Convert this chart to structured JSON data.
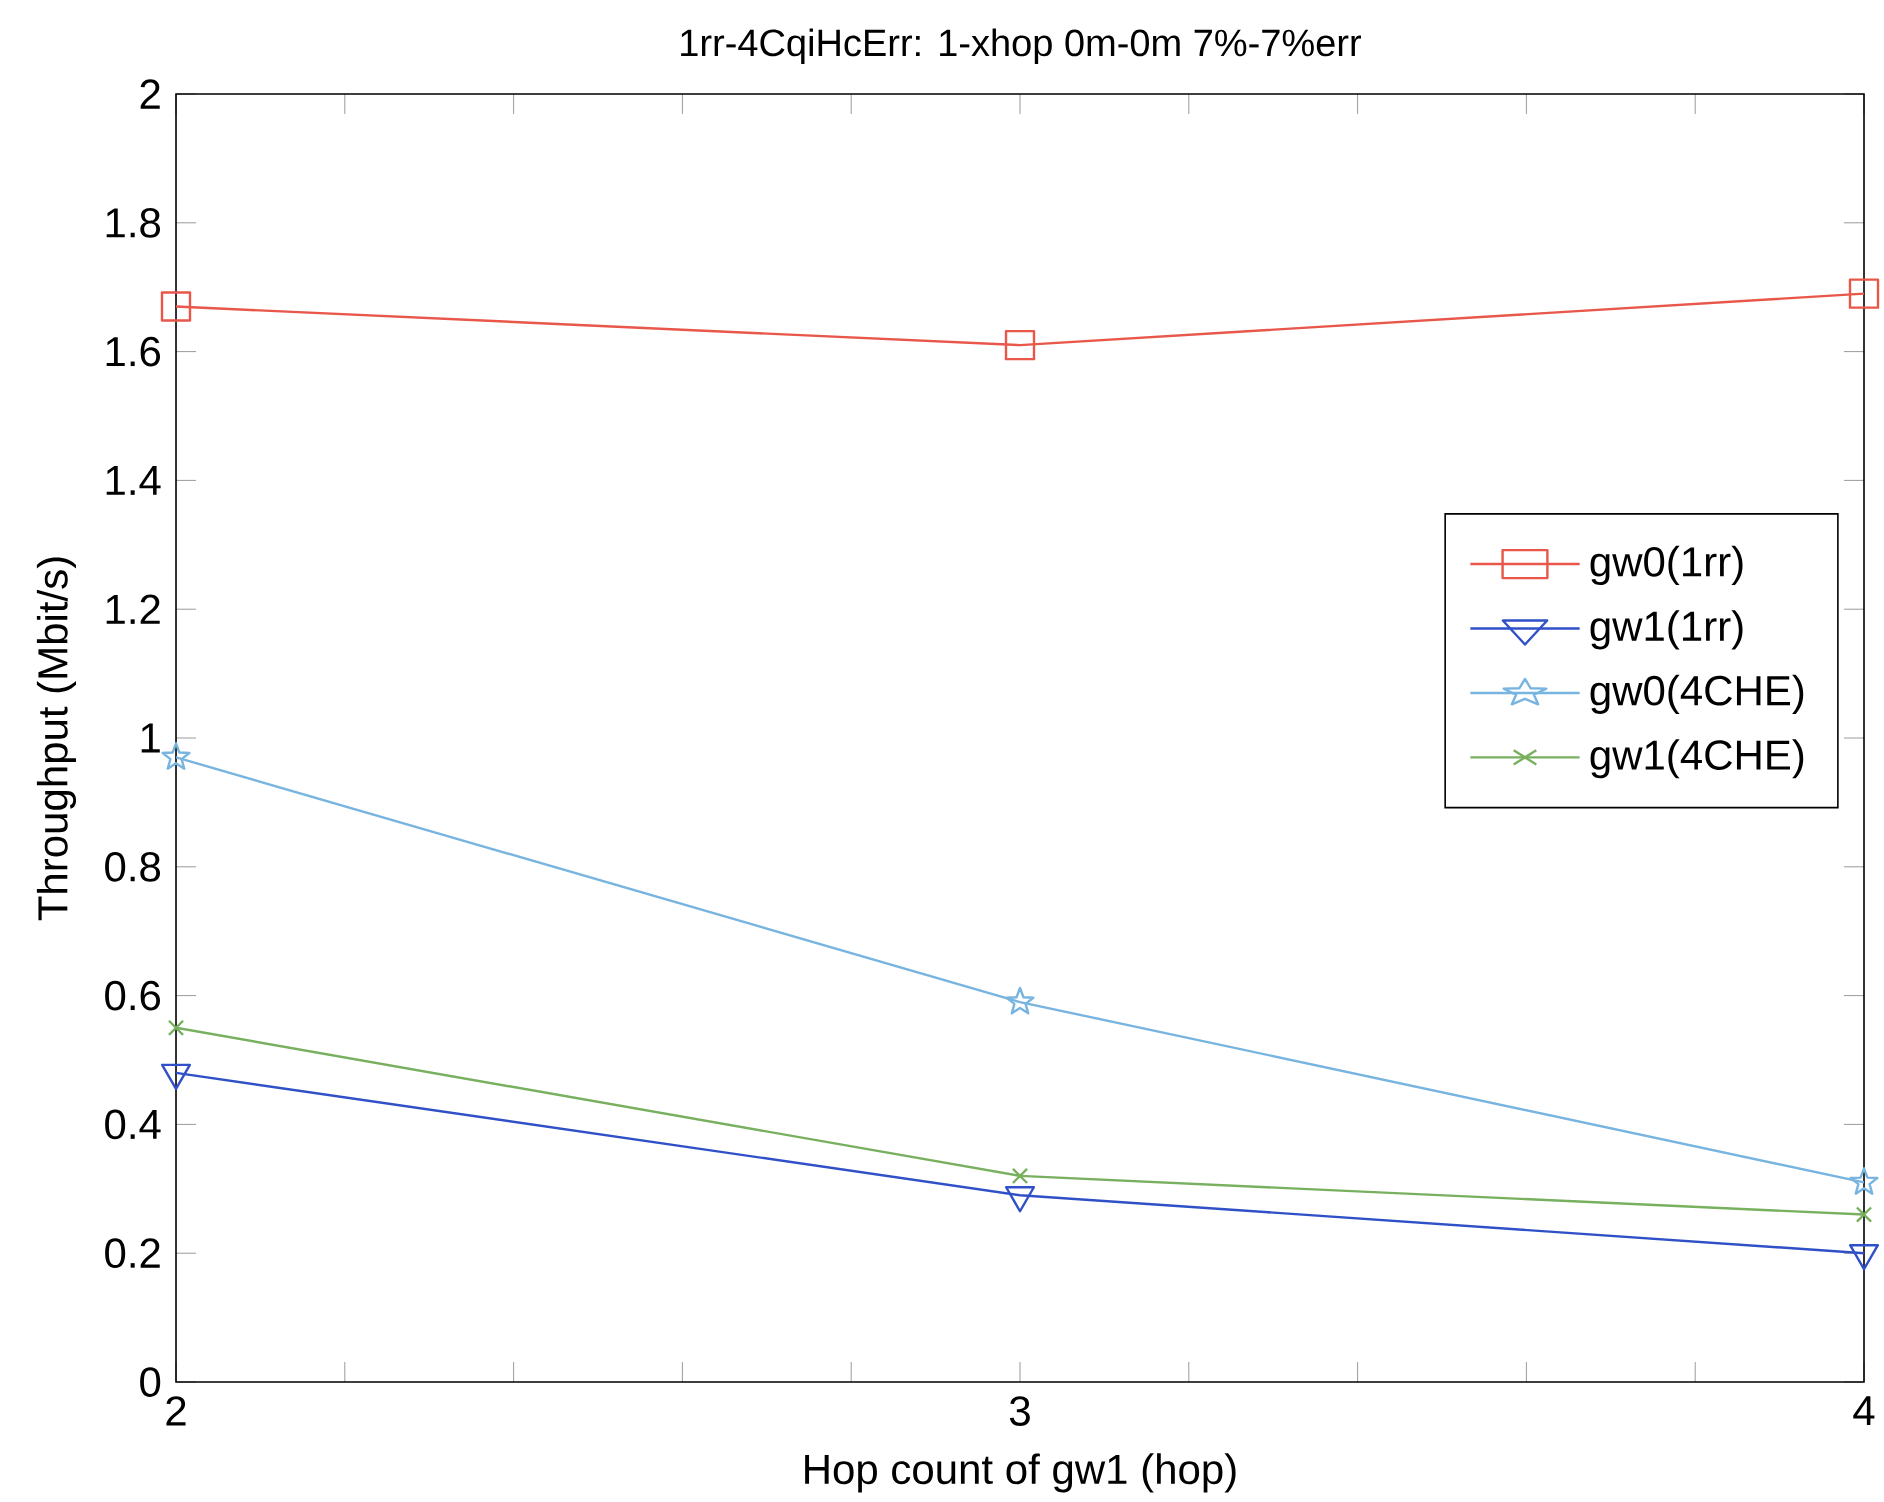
{
  "chart_data": {
    "type": "line",
    "title": "1rr-4CqiHcErr: 1-xhop 0m-0m 7%-7%err",
    "xlabel": "Hop count of gw1 (hop)",
    "ylabel": "Throughput (Mbit/s)",
    "x": [
      2,
      3,
      4
    ],
    "series": [
      {
        "name": "gw0(1rr)",
        "color": "#e8574a",
        "marker": "square",
        "values": [
          1.67,
          1.61,
          1.69
        ]
      },
      {
        "name": "gw1(1rr)",
        "color": "#3050c8",
        "marker": "triangle",
        "values": [
          0.48,
          0.29,
          0.2
        ]
      },
      {
        "name": "gw0(4CHE)",
        "color": "#78b4e0",
        "marker": "star",
        "values": [
          0.97,
          0.59,
          0.31
        ]
      },
      {
        "name": "gw1(4CHE)",
        "color": "#78b060",
        "marker": "cross",
        "values": [
          0.55,
          0.32,
          0.26
        ]
      }
    ],
    "xlim": [
      2,
      4
    ],
    "xticks": [
      2,
      {
        "value": 2.2,
        "label": null
      },
      {
        "value": 2.4,
        "label": null
      },
      {
        "value": 2.6,
        "label": null
      },
      {
        "value": 2.8,
        "label": null
      },
      3,
      {
        "value": 3.2,
        "label": null
      },
      {
        "value": 3.4,
        "label": null
      },
      {
        "value": 3.6,
        "label": null
      },
      {
        "value": 3.8,
        "label": null
      },
      4
    ],
    "ylim": [
      0,
      2
    ],
    "yticks": [
      0,
      0.2,
      0.4,
      0.6,
      0.8,
      1,
      1.2,
      1.4,
      1.6,
      1.8,
      2
    ],
    "grid": false,
    "legend": "right",
    "line_style": "solid"
  }
}
